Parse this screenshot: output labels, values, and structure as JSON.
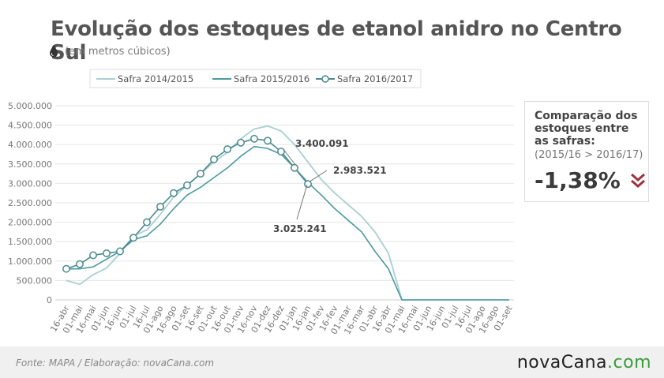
{
  "header": {
    "title": "Evolução dos estoques de etanol anidro no Centro Sul",
    "subtitle": "(em metros cúbicos)",
    "icon": "oil-drop-icon"
  },
  "comparison": {
    "title": "Comparação dos estoques entre as safras:",
    "subtitle": "(2015/16 > 2016/17)",
    "value": "-1,38%",
    "icon": "double-chevron-down-icon",
    "color": "#a03040"
  },
  "footer": {
    "source": "Fonte: MAPA  / Elaboração: novaCana.com",
    "logo_part1": "novaCana",
    "logo_part2": ".com"
  },
  "chart_data": {
    "type": "line",
    "categories": [
      "16-abr",
      "01-mai",
      "16-mai",
      "01-jun",
      "16-jun",
      "01-jul",
      "16-jul",
      "01-ago",
      "16-ago",
      "01-set",
      "16-set",
      "01-out",
      "16-out",
      "01-nov",
      "16-nov",
      "01-dez",
      "16-dez",
      "01-jan",
      "16-jan",
      "01-fev",
      "16-fev",
      "01-mar",
      "16-mar",
      "01-abr",
      "16-abr",
      "01-mai",
      "16-mai",
      "01-jun",
      "16-jun",
      "01-jul",
      "16-jul",
      "01-ago",
      "16-ago",
      "01-set"
    ],
    "ylim": [
      0,
      5000000
    ],
    "yticks": [
      0,
      500000,
      1000000,
      1500000,
      2000000,
      2500000,
      3000000,
      3500000,
      4000000,
      4500000,
      5000000
    ],
    "ytick_labels": [
      "0",
      "500.000",
      "1.000.000",
      "1.500.000",
      "2.000.000",
      "2.500.000",
      "3.000.000",
      "3.500.000",
      "4.000.000",
      "4.500.000",
      "5.000.000"
    ],
    "grid": true,
    "legend_position": "top",
    "series": [
      {
        "name": "Safra 2014/2015",
        "color": "#a9cfd3",
        "markers": false,
        "values": [
          500000,
          400000,
          650000,
          820000,
          1200000,
          1650000,
          1800000,
          2200000,
          2650000,
          2950000,
          3250000,
          3550000,
          3800000,
          4150000,
          4400000,
          4480000,
          4350000,
          4000000,
          3550000,
          3100000,
          2750000,
          2450000,
          2150000,
          1750000,
          1200000,
          0,
          0,
          0,
          0,
          0,
          0,
          0,
          0,
          0
        ]
      },
      {
        "name": "Safra 2015/2016",
        "color": "#4a9aa0",
        "markers": false,
        "values": [
          800000,
          800000,
          850000,
          1050000,
          1250000,
          1550000,
          1650000,
          1950000,
          2350000,
          2700000,
          2900000,
          3150000,
          3400000,
          3700000,
          3950000,
          3900000,
          3750000,
          3400091,
          3025241,
          2700000,
          2350000,
          2050000,
          1750000,
          1250000,
          800000,
          0,
          0,
          0,
          0,
          0,
          0,
          0,
          0,
          0
        ]
      },
      {
        "name": "Safra 2016/2017",
        "color": "#4a8a8e",
        "markers": true,
        "values": [
          800000,
          920000,
          1150000,
          1200000,
          1250000,
          1600000,
          2000000,
          2400000,
          2750000,
          2950000,
          3250000,
          3620000,
          3880000,
          4050000,
          4150000,
          4100000,
          3820000,
          3400000,
          2983521,
          null,
          null,
          null,
          null,
          null,
          null,
          null,
          null,
          null,
          null,
          null,
          null,
          null,
          null,
          null
        ]
      }
    ],
    "annotations": [
      {
        "text": "3.400.091",
        "index": 17,
        "value": 3400091
      },
      {
        "text": "2.983.521",
        "index": 18,
        "value": 2983521
      },
      {
        "text": "3.025.241",
        "index": 18,
        "value": 3025241
      }
    ]
  }
}
